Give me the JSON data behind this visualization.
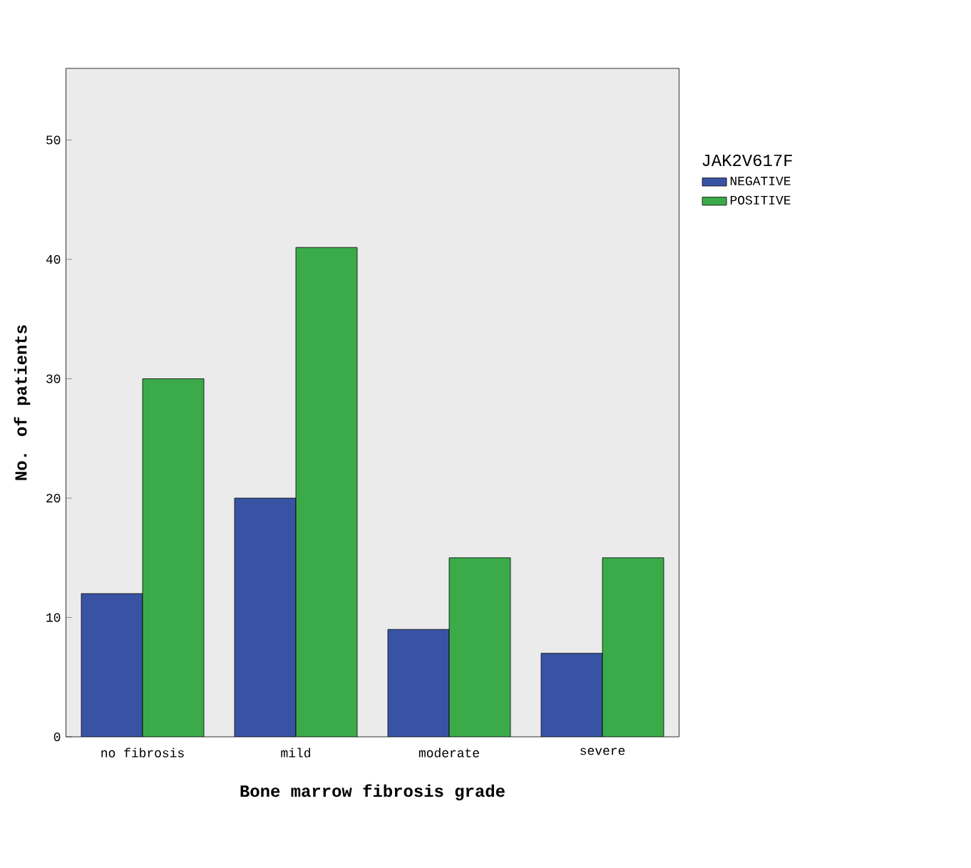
{
  "chart_data": {
    "type": "bar",
    "xlabel": "Bone marrow fibrosis grade",
    "ylabel": "No. of patients",
    "legend_title": "JAK2V617F",
    "categories": [
      "no fibrosis",
      "mild",
      "moderate",
      "severe"
    ],
    "series": [
      {
        "name": "NEGATIVE",
        "color": "#3953a4",
        "values": [
          12,
          20,
          9,
          7
        ]
      },
      {
        "name": "POSITIVE",
        "color": "#3bab4a",
        "values": [
          30,
          41,
          15,
          15
        ]
      }
    ],
    "ylim": [
      0,
      56
    ],
    "yticks": [
      0,
      10,
      20,
      30,
      40,
      50
    ],
    "legend": "top right"
  }
}
